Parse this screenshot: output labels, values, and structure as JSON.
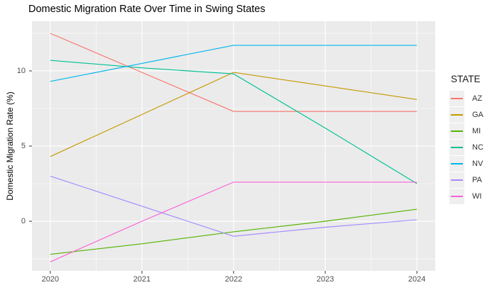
{
  "chart": {
    "title": "Domestic Migration Rate Over Time in Swing States",
    "ylabel": "Domestic Migration Rate (%)",
    "legend_title": "STATE"
  },
  "chart_data": {
    "type": "line",
    "title": "Domestic Migration Rate Over Time in Swing States",
    "xlabel": "",
    "ylabel": "Domestic Migration Rate (%)",
    "x": [
      2020,
      2021,
      2022,
      2023,
      2024
    ],
    "x_tick_labels": [
      "2020",
      "2021",
      "2022",
      "2023",
      "2024"
    ],
    "y_ticks": [
      0,
      5,
      10
    ],
    "y_tick_labels": [
      "0",
      "5",
      "10"
    ],
    "y_minor_ticks": [
      -2.5,
      2.5,
      7.5,
      12.5
    ],
    "xlim": [
      2019.8,
      2024.2
    ],
    "ylim": [
      -3.3,
      13.3
    ],
    "grid": true,
    "legend_position": "right",
    "legend_title": "STATE",
    "series": [
      {
        "name": "AZ",
        "color": "#F8766D",
        "values": [
          12.5,
          9.9,
          7.3,
          7.3,
          7.3
        ]
      },
      {
        "name": "GA",
        "color": "#C49A00",
        "values": [
          4.3,
          7.1,
          9.9,
          9.0,
          8.1
        ]
      },
      {
        "name": "MI",
        "color": "#53B400",
        "values": [
          -2.2,
          -1.5,
          -0.7,
          0.0,
          0.8
        ]
      },
      {
        "name": "NC",
        "color": "#00C094",
        "values": [
          10.7,
          10.2,
          9.8,
          6.2,
          2.5
        ]
      },
      {
        "name": "NV",
        "color": "#00B6EB",
        "values": [
          9.3,
          10.5,
          11.7,
          11.7,
          11.7
        ]
      },
      {
        "name": "PA",
        "color": "#A58AFF",
        "values": [
          3.0,
          1.0,
          -1.0,
          -0.4,
          0.1
        ]
      },
      {
        "name": "WI",
        "color": "#FB61D7",
        "values": [
          -2.7,
          0.0,
          2.6,
          2.6,
          2.6
        ]
      }
    ],
    "colors": {
      "panel_bg": "#EBEBEB",
      "grid_major": "#FFFFFF",
      "grid_minor": "#FFFFFF",
      "axis_text": "#4D4D4D",
      "tick_mark": "#333333",
      "legend_key_bg": "#F0EFEF",
      "title_text": "#000000"
    }
  }
}
